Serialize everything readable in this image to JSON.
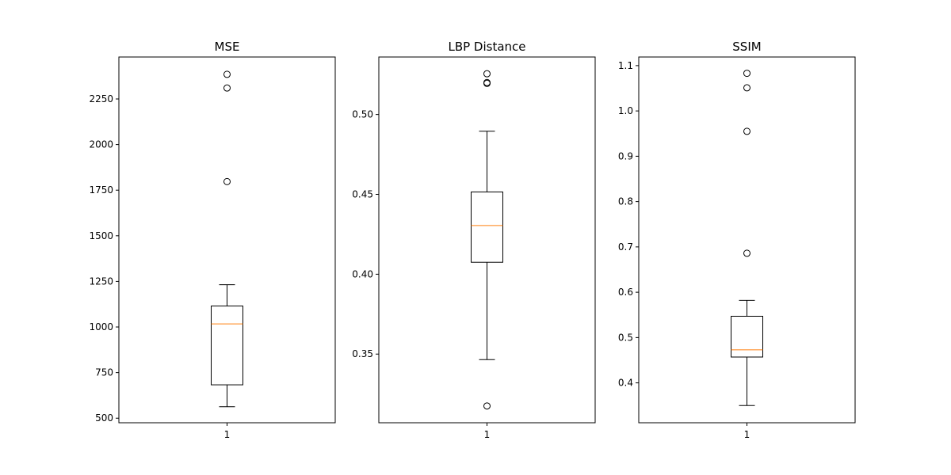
{
  "chart_data": [
    {
      "type": "box",
      "title": "MSE",
      "x_tick_labels": [
        "1"
      ],
      "y_ticks": [
        500,
        750,
        1000,
        1250,
        1500,
        1750,
        2000,
        2250
      ],
      "y_tick_labels": [
        "500",
        "750",
        "1000",
        "1250",
        "1500",
        "1750",
        "2000",
        "2250"
      ],
      "ylim": [
        475,
        2480
      ],
      "box": {
        "whisker_low": 563,
        "q1": 683,
        "median": 1017,
        "q3": 1115,
        "whisker_high": 1232
      },
      "outliers": [
        1797,
        2310,
        2385
      ]
    },
    {
      "type": "box",
      "title": "LBP Distance",
      "x_tick_labels": [
        "1"
      ],
      "y_ticks": [
        0.35,
        0.4,
        0.45,
        0.5
      ],
      "y_tick_labels": [
        "0.35",
        "0.40",
        "0.45",
        "0.50"
      ],
      "ylim": [
        0.307,
        0.536
      ],
      "box": {
        "whisker_low": 0.3465,
        "q1": 0.4075,
        "median": 0.4305,
        "q3": 0.4515,
        "whisker_high": 0.4895
      },
      "outliers": [
        0.3175,
        0.5195,
        0.52,
        0.5255
      ]
    },
    {
      "type": "box",
      "title": "SSIM",
      "x_tick_labels": [
        "1"
      ],
      "y_ticks": [
        0.4,
        0.5,
        0.6,
        0.7,
        0.8,
        0.9,
        1.0,
        1.1
      ],
      "y_tick_labels": [
        "0.4",
        "0.5",
        "0.6",
        "0.7",
        "0.8",
        "0.9",
        "1.0",
        "1.1"
      ],
      "ylim": [
        0.312,
        1.119
      ],
      "box": {
        "whisker_low": 0.35,
        "q1": 0.457,
        "median": 0.473,
        "q3": 0.547,
        "whisker_high": 0.582
      },
      "outliers": [
        0.686,
        0.955,
        1.051,
        1.083
      ]
    }
  ],
  "colors": {
    "median": "#ff7f0e",
    "box_stroke": "#000000",
    "axes_stroke": "#000000",
    "background": "#ffffff"
  }
}
